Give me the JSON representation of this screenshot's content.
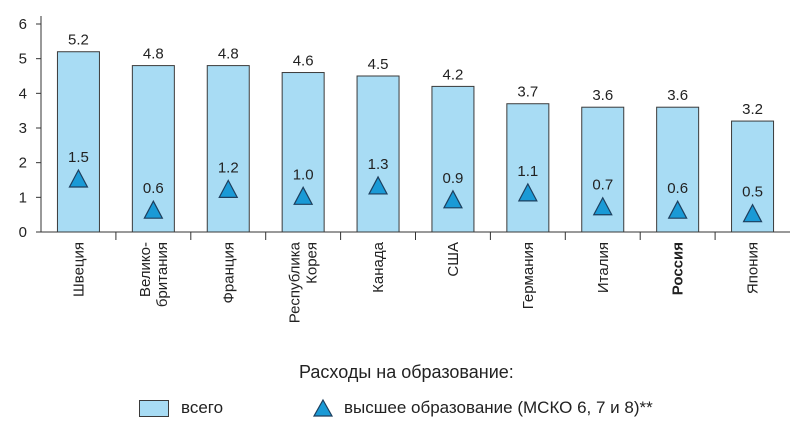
{
  "chart_data": {
    "type": "bar",
    "categories": [
      [
        "Швеция"
      ],
      [
        "Велико-",
        "британия"
      ],
      [
        "Франция"
      ],
      [
        "Республика",
        "Корея"
      ],
      [
        "Канада"
      ],
      [
        "США"
      ],
      [
        "Германия"
      ],
      [
        "Италия"
      ],
      [
        "Россия"
      ],
      [
        "Япония"
      ]
    ],
    "bold_categories": [
      "Россия"
    ],
    "series": [
      {
        "name": "всего",
        "type": "bar",
        "values": [
          5.2,
          4.8,
          4.8,
          4.6,
          4.5,
          4.2,
          3.7,
          3.6,
          3.6,
          3.2
        ],
        "labels": [
          "5.2",
          "4.8",
          "4.8",
          "4.6",
          "4.5",
          "4.2",
          "3.7",
          "3.6",
          "3.6",
          "3.2"
        ]
      },
      {
        "name": "высшее образование (МСКО 6, 7 и 8)**",
        "type": "marker-triangle",
        "values": [
          1.5,
          0.6,
          1.2,
          1.0,
          1.3,
          0.9,
          1.1,
          0.7,
          0.6,
          0.5
        ],
        "labels": [
          "1.5",
          "0.6",
          "1.2",
          "1.0",
          "1.3",
          "0.9",
          "1.1",
          "0.7",
          "0.6",
          "0.5"
        ]
      }
    ],
    "ylim": [
      0,
      6
    ],
    "yticks": [
      0,
      1,
      2,
      3,
      4,
      5,
      6
    ],
    "grid": false,
    "legend_position": "bottom",
    "colors": {
      "bar_fill": "#a8dcf4",
      "bar_stroke": "#3a3a3a",
      "marker_fill": "#1a9ad6",
      "marker_stroke": "#1d3f5e",
      "axis": "#333333"
    }
  },
  "legend": {
    "title": "Расходы на образование:",
    "bar_label": "всего",
    "marker_label": "высшее образование (МСКО 6, 7 и 8)**"
  }
}
